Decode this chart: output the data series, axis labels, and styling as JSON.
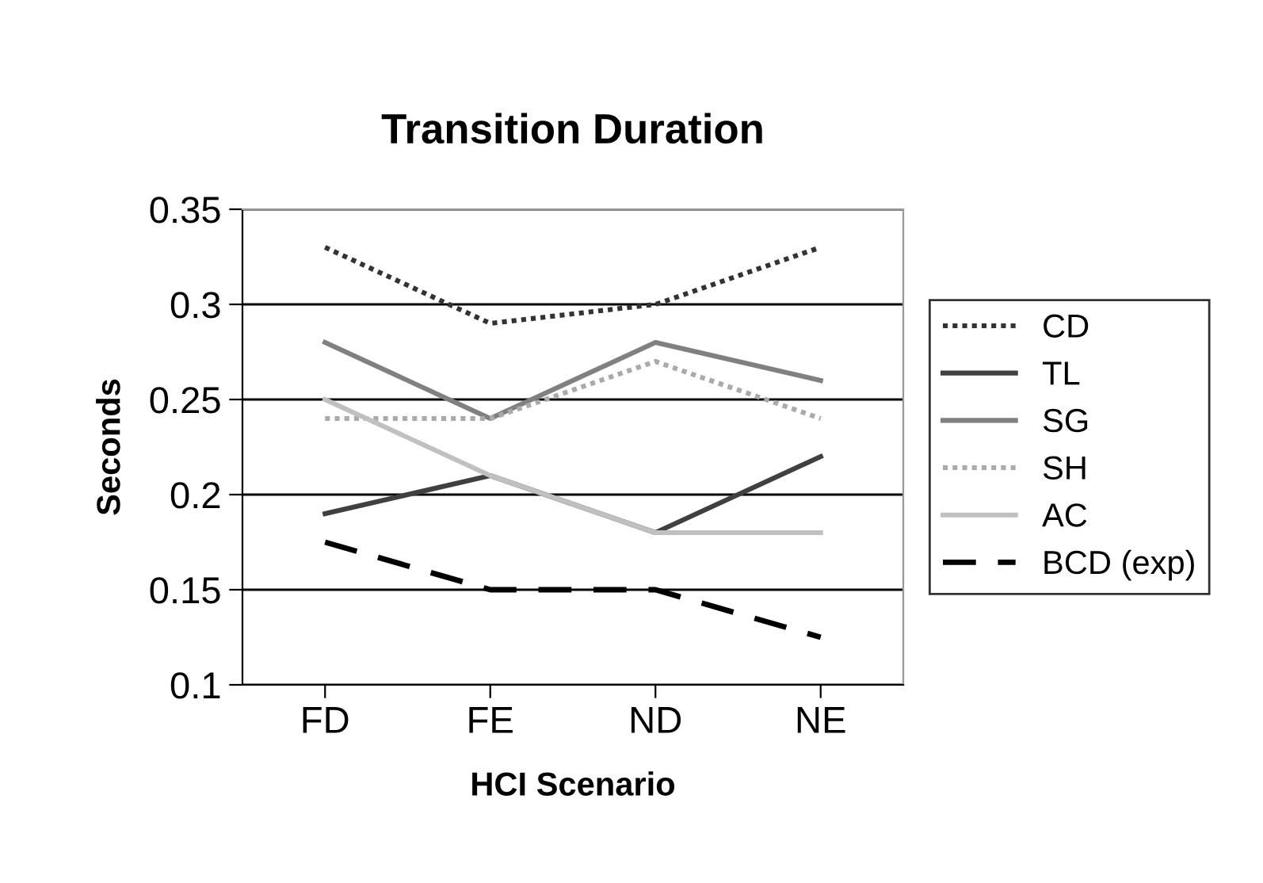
{
  "chart_data": {
    "type": "line",
    "title": "Transition Duration",
    "xlabel": "HCI Scenario",
    "ylabel": "Seconds",
    "categories": [
      "FD",
      "FE",
      "ND",
      "NE"
    ],
    "series": [
      {
        "name": "CD",
        "color": "#333333",
        "line_style": "dotted",
        "values": [
          0.33,
          0.29,
          0.3,
          0.33
        ]
      },
      {
        "name": "TL",
        "color": "#404040",
        "line_style": "solid",
        "values": [
          0.19,
          0.21,
          0.18,
          0.22
        ]
      },
      {
        "name": "SG",
        "color": "#808080",
        "line_style": "solid",
        "values": [
          0.28,
          0.24,
          0.28,
          0.26
        ]
      },
      {
        "name": "SH",
        "color": "#aaaaaa",
        "line_style": "dotted",
        "values": [
          0.24,
          0.24,
          0.27,
          0.24
        ]
      },
      {
        "name": "AC",
        "color": "#c0c0c0",
        "line_style": "solid",
        "values": [
          0.25,
          0.21,
          0.18,
          0.18
        ]
      },
      {
        "name": "BCD (exp)",
        "color": "#000000",
        "line_style": "dashed",
        "values": [
          0.175,
          0.15,
          0.15,
          0.125
        ]
      }
    ],
    "ylim": [
      0.1,
      0.35
    ],
    "yticks": [
      0.1,
      0.15,
      0.2,
      0.25,
      0.3,
      0.35
    ],
    "grid": "y",
    "legend": "right",
    "marker": "none"
  }
}
